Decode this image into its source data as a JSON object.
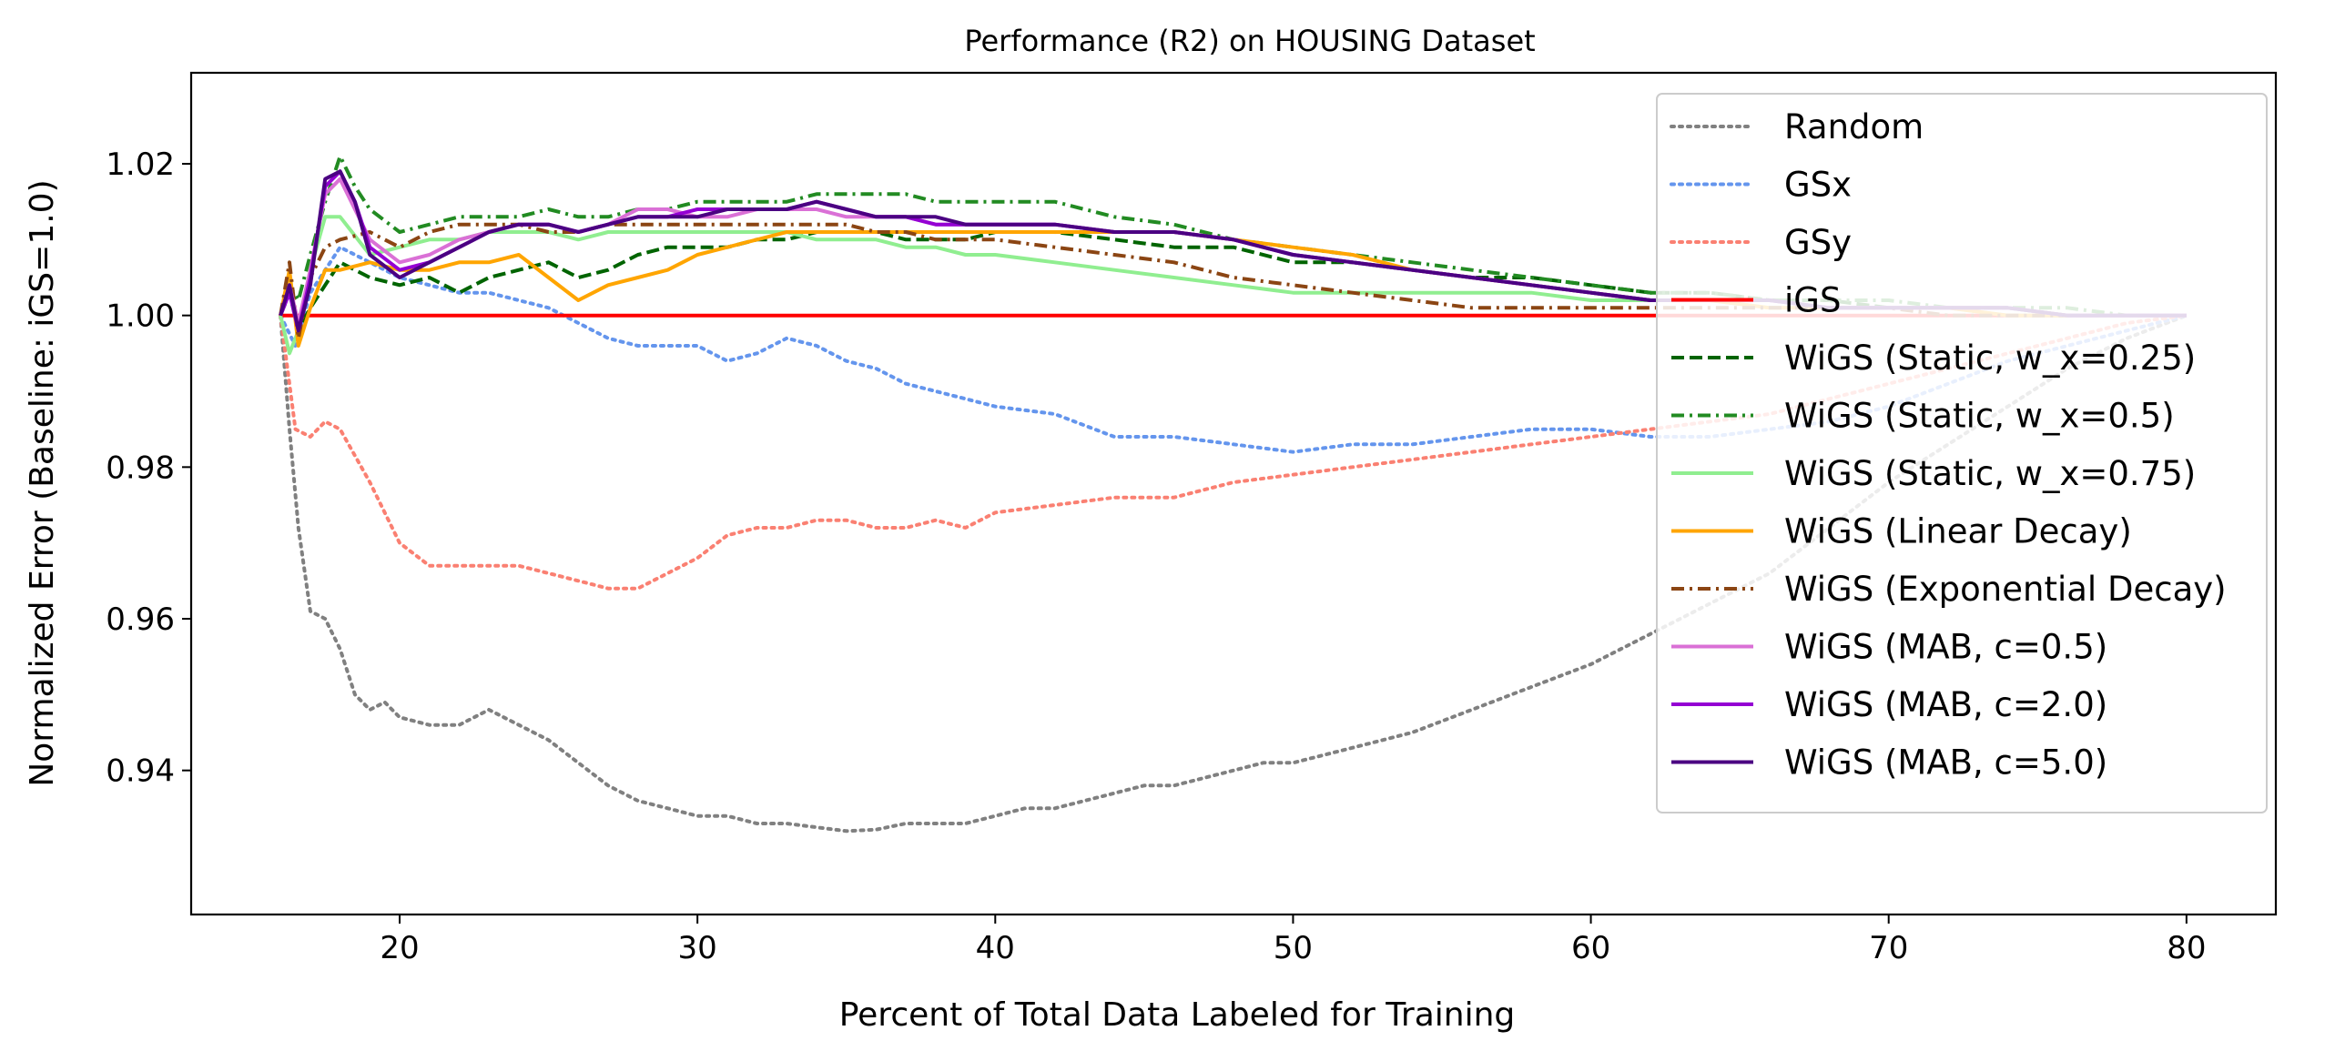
{
  "chart_data": {
    "type": "line",
    "title": "Performance (R2) on HOUSING Dataset",
    "xlabel": "Percent of Total Data Labeled for Training",
    "ylabel": "Normalized Error (Baseline: iGS=1.0)",
    "xlim": [
      13,
      83
    ],
    "ylim": [
      0.921,
      1.032
    ],
    "xticks": [
      20,
      30,
      40,
      50,
      60,
      70,
      80
    ],
    "yticks": [
      0.94,
      0.96,
      0.98,
      1.0,
      1.02
    ],
    "ytick_labels": [
      "0.94",
      "0.96",
      "0.98",
      "1.00",
      "1.02"
    ],
    "grid": false,
    "legend_position": "upper right",
    "series": [
      {
        "name": "Random",
        "color": "#808080",
        "dash": "dotted",
        "x": [
          16,
          16.3,
          16.6,
          17,
          17.5,
          18,
          18.5,
          19,
          19.5,
          20,
          21,
          22,
          23,
          24,
          25,
          26,
          27,
          28,
          29,
          30,
          31,
          32,
          33,
          34,
          35,
          36,
          37,
          38,
          39,
          40,
          41,
          42,
          43,
          44,
          45,
          46,
          47,
          48,
          49,
          50,
          52,
          54,
          56,
          58,
          60,
          62,
          64,
          66,
          68,
          70,
          72,
          74,
          76,
          78,
          80
        ],
        "y": [
          1.0,
          0.985,
          0.972,
          0.961,
          0.96,
          0.956,
          0.95,
          0.948,
          0.949,
          0.947,
          0.946,
          0.946,
          0.948,
          0.946,
          0.944,
          0.941,
          0.938,
          0.936,
          0.935,
          0.934,
          0.934,
          0.933,
          0.933,
          0.9325,
          0.932,
          0.9322,
          0.933,
          0.933,
          0.933,
          0.934,
          0.935,
          0.935,
          0.936,
          0.937,
          0.938,
          0.938,
          0.939,
          0.94,
          0.941,
          0.941,
          0.943,
          0.945,
          0.948,
          0.951,
          0.954,
          0.958,
          0.962,
          0.966,
          0.972,
          0.978,
          0.983,
          0.988,
          0.993,
          0.997,
          1.0
        ]
      },
      {
        "name": "GSx",
        "color": "#6495ED",
        "dash": "dotted",
        "x": [
          16,
          16.5,
          17,
          18,
          19,
          20,
          21,
          22,
          23,
          24,
          25,
          26,
          27,
          28,
          29,
          30,
          31,
          32,
          33,
          34,
          35,
          36,
          37,
          38,
          39,
          40,
          42,
          44,
          46,
          48,
          50,
          52,
          54,
          56,
          58,
          60,
          62,
          64,
          66,
          68,
          70,
          72,
          74,
          76,
          78,
          80
        ],
        "y": [
          1.0,
          0.996,
          1.003,
          1.009,
          1.007,
          1.005,
          1.004,
          1.003,
          1.003,
          1.002,
          1.001,
          0.999,
          0.997,
          0.996,
          0.996,
          0.996,
          0.994,
          0.995,
          0.997,
          0.996,
          0.994,
          0.993,
          0.991,
          0.99,
          0.989,
          0.988,
          0.987,
          0.984,
          0.984,
          0.983,
          0.982,
          0.983,
          0.983,
          0.984,
          0.985,
          0.985,
          0.984,
          0.984,
          0.985,
          0.986,
          0.988,
          0.991,
          0.994,
          0.996,
          0.998,
          1.0
        ]
      },
      {
        "name": "GSy",
        "color": "#FA8072",
        "dash": "dotted",
        "x": [
          16,
          16.5,
          17,
          17.5,
          18,
          19,
          20,
          21,
          22,
          23,
          24,
          25,
          26,
          27,
          28,
          29,
          30,
          31,
          32,
          33,
          34,
          35,
          36,
          37,
          38,
          39,
          40,
          42,
          44,
          46,
          48,
          50,
          52,
          54,
          56,
          58,
          60,
          62,
          64,
          66,
          68,
          70,
          72,
          74,
          76,
          78,
          80
        ],
        "y": [
          1.0,
          0.985,
          0.984,
          0.986,
          0.985,
          0.978,
          0.97,
          0.967,
          0.967,
          0.967,
          0.967,
          0.966,
          0.965,
          0.964,
          0.964,
          0.966,
          0.968,
          0.971,
          0.972,
          0.972,
          0.973,
          0.973,
          0.972,
          0.972,
          0.973,
          0.972,
          0.974,
          0.975,
          0.976,
          0.976,
          0.978,
          0.979,
          0.98,
          0.981,
          0.982,
          0.983,
          0.984,
          0.985,
          0.986,
          0.987,
          0.989,
          0.991,
          0.993,
          0.995,
          0.997,
          0.999,
          1.0
        ]
      },
      {
        "name": "iGS",
        "color": "#FF0000",
        "dash": "solid",
        "x": [
          16,
          80
        ],
        "y": [
          1.0,
          1.0
        ]
      },
      {
        "name": "WiGS (Static, w_x=0.25)",
        "color": "#006400",
        "dash": "dashed",
        "x": [
          16,
          16.3,
          16.6,
          17,
          17.5,
          18,
          19,
          20,
          21,
          22,
          23,
          24,
          25,
          26,
          27,
          28,
          29,
          30,
          31,
          32,
          33,
          34,
          35,
          36,
          37,
          38,
          39,
          40,
          42,
          44,
          46,
          48,
          50,
          52,
          54,
          56,
          58,
          60,
          62,
          64,
          66,
          68,
          70,
          72,
          74,
          76,
          78,
          80
        ],
        "y": [
          1.0,
          1.003,
          0.998,
          1.001,
          1.004,
          1.007,
          1.005,
          1.004,
          1.005,
          1.003,
          1.005,
          1.006,
          1.007,
          1.005,
          1.006,
          1.008,
          1.009,
          1.009,
          1.009,
          1.01,
          1.01,
          1.011,
          1.011,
          1.011,
          1.01,
          1.01,
          1.01,
          1.011,
          1.011,
          1.01,
          1.009,
          1.009,
          1.007,
          1.007,
          1.006,
          1.005,
          1.005,
          1.004,
          1.003,
          1.003,
          1.002,
          1.002,
          1.001,
          1.001,
          1.001,
          1.0,
          1.0,
          1.0
        ]
      },
      {
        "name": "WiGS (Static, w_x=0.5)",
        "color": "#228B22",
        "dash": "dashdot",
        "x": [
          16,
          16.3,
          16.6,
          17,
          17.5,
          18,
          18.5,
          19,
          20,
          21,
          22,
          23,
          24,
          25,
          26,
          27,
          28,
          29,
          30,
          31,
          32,
          33,
          34,
          35,
          36,
          37,
          38,
          39,
          40,
          41,
          42,
          43,
          44,
          46,
          48,
          50,
          52,
          54,
          56,
          58,
          60,
          62,
          64,
          66,
          68,
          70,
          72,
          74,
          76,
          78,
          80
        ],
        "y": [
          1.0,
          1.004,
          1.002,
          1.008,
          1.015,
          1.021,
          1.017,
          1.014,
          1.011,
          1.012,
          1.013,
          1.013,
          1.013,
          1.014,
          1.013,
          1.013,
          1.014,
          1.014,
          1.015,
          1.015,
          1.015,
          1.015,
          1.016,
          1.016,
          1.016,
          1.016,
          1.015,
          1.015,
          1.015,
          1.015,
          1.015,
          1.014,
          1.013,
          1.012,
          1.01,
          1.009,
          1.008,
          1.007,
          1.006,
          1.005,
          1.004,
          1.003,
          1.003,
          1.002,
          1.002,
          1.002,
          1.001,
          1.001,
          1.001,
          1.0,
          1.0
        ]
      },
      {
        "name": "WiGS (Static, w_x=0.75)",
        "color": "#90EE90",
        "dash": "solid",
        "x": [
          16,
          16.3,
          16.6,
          17,
          17.5,
          18,
          19,
          20,
          21,
          22,
          23,
          24,
          25,
          26,
          27,
          28,
          29,
          30,
          31,
          32,
          33,
          34,
          35,
          36,
          37,
          38,
          39,
          40,
          42,
          44,
          46,
          48,
          50,
          52,
          54,
          56,
          58,
          60,
          62,
          64,
          66,
          68,
          70,
          72,
          74,
          76,
          78,
          80
        ],
        "y": [
          1.0,
          0.995,
          0.998,
          1.006,
          1.013,
          1.013,
          1.008,
          1.009,
          1.01,
          1.01,
          1.011,
          1.011,
          1.011,
          1.01,
          1.011,
          1.011,
          1.011,
          1.011,
          1.011,
          1.011,
          1.011,
          1.01,
          1.01,
          1.01,
          1.009,
          1.009,
          1.008,
          1.008,
          1.007,
          1.006,
          1.005,
          1.004,
          1.003,
          1.003,
          1.003,
          1.003,
          1.003,
          1.002,
          1.002,
          1.002,
          1.001,
          1.001,
          1.001,
          1.001,
          1.0,
          1.0,
          1.0,
          1.0
        ]
      },
      {
        "name": "WiGS (Linear Decay)",
        "color": "#FFA500",
        "dash": "solid",
        "x": [
          16,
          16.3,
          16.6,
          17,
          17.5,
          18,
          19,
          20,
          21,
          22,
          23,
          24,
          25,
          26,
          27,
          28,
          29,
          30,
          31,
          32,
          33,
          34,
          35,
          36,
          37,
          38,
          39,
          40,
          42,
          44,
          46,
          48,
          50,
          52,
          54,
          56,
          58,
          60,
          62,
          64,
          66,
          68,
          70,
          72,
          74,
          76,
          78,
          80
        ],
        "y": [
          1.0,
          1.006,
          0.996,
          1.001,
          1.006,
          1.006,
          1.007,
          1.006,
          1.006,
          1.007,
          1.007,
          1.008,
          1.005,
          1.002,
          1.004,
          1.005,
          1.006,
          1.008,
          1.009,
          1.01,
          1.011,
          1.011,
          1.011,
          1.011,
          1.011,
          1.011,
          1.011,
          1.011,
          1.011,
          1.011,
          1.011,
          1.01,
          1.009,
          1.008,
          1.006,
          1.005,
          1.004,
          1.003,
          1.002,
          1.002,
          1.001,
          1.001,
          1.001,
          1.001,
          1.0,
          1.0,
          1.0,
          1.0
        ]
      },
      {
        "name": "WiGS (Exponential Decay)",
        "color": "#8B4513",
        "dash": "dashdot",
        "x": [
          16,
          16.3,
          16.6,
          17,
          17.5,
          18,
          19,
          20,
          21,
          22,
          23,
          24,
          25,
          26,
          27,
          28,
          29,
          30,
          31,
          32,
          33,
          34,
          35,
          36,
          37,
          38,
          39,
          40,
          42,
          44,
          46,
          48,
          50,
          52,
          54,
          56,
          58,
          60,
          62,
          64,
          66,
          68,
          70,
          72,
          74,
          76,
          78,
          80
        ],
        "y": [
          1.0,
          1.007,
          0.997,
          1.005,
          1.009,
          1.01,
          1.011,
          1.009,
          1.011,
          1.012,
          1.012,
          1.012,
          1.011,
          1.011,
          1.012,
          1.012,
          1.012,
          1.012,
          1.012,
          1.012,
          1.012,
          1.012,
          1.012,
          1.011,
          1.011,
          1.01,
          1.01,
          1.01,
          1.009,
          1.008,
          1.007,
          1.005,
          1.004,
          1.003,
          1.002,
          1.001,
          1.001,
          1.001,
          1.001,
          1.001,
          1.001,
          1.001,
          1.001,
          1.0,
          1.0,
          1.0,
          1.0,
          1.0
        ]
      },
      {
        "name": "WiGS (MAB, c=0.5)",
        "color": "#DA70D6",
        "dash": "solid",
        "x": [
          16,
          16.3,
          16.6,
          17,
          17.5,
          18,
          18.5,
          19,
          20,
          21,
          22,
          23,
          24,
          25,
          26,
          27,
          28,
          29,
          30,
          31,
          32,
          33,
          34,
          35,
          36,
          37,
          38,
          39,
          40,
          42,
          44,
          46,
          48,
          50,
          52,
          54,
          56,
          58,
          60,
          62,
          64,
          66,
          68,
          70,
          72,
          74,
          76,
          78,
          80
        ],
        "y": [
          1.0,
          1.004,
          0.999,
          1.006,
          1.016,
          1.018,
          1.014,
          1.01,
          1.007,
          1.008,
          1.01,
          1.011,
          1.012,
          1.012,
          1.011,
          1.012,
          1.014,
          1.014,
          1.013,
          1.013,
          1.014,
          1.014,
          1.014,
          1.013,
          1.013,
          1.013,
          1.012,
          1.012,
          1.012,
          1.012,
          1.011,
          1.011,
          1.01,
          1.008,
          1.007,
          1.006,
          1.005,
          1.004,
          1.003,
          1.002,
          1.002,
          1.002,
          1.001,
          1.001,
          1.001,
          1.001,
          1.0,
          1.0,
          1.0
        ]
      },
      {
        "name": "WiGS (MAB, c=2.0)",
        "color": "#9400D3",
        "dash": "solid",
        "x": [
          16,
          16.3,
          16.6,
          17,
          17.5,
          18,
          18.5,
          19,
          20,
          21,
          22,
          23,
          24,
          25,
          26,
          27,
          28,
          29,
          30,
          31,
          32,
          33,
          34,
          35,
          36,
          37,
          38,
          39,
          40,
          42,
          44,
          46,
          48,
          50,
          52,
          54,
          56,
          58,
          60,
          62,
          64,
          66,
          68,
          70,
          72,
          74,
          76,
          78,
          80
        ],
        "y": [
          1.0,
          1.003,
          0.998,
          1.005,
          1.017,
          1.019,
          1.015,
          1.009,
          1.006,
          1.007,
          1.009,
          1.011,
          1.012,
          1.012,
          1.011,
          1.012,
          1.013,
          1.013,
          1.014,
          1.014,
          1.014,
          1.014,
          1.015,
          1.014,
          1.013,
          1.013,
          1.012,
          1.012,
          1.012,
          1.012,
          1.011,
          1.011,
          1.01,
          1.008,
          1.007,
          1.006,
          1.005,
          1.004,
          1.003,
          1.002,
          1.002,
          1.002,
          1.001,
          1.001,
          1.001,
          1.001,
          1.0,
          1.0,
          1.0
        ]
      },
      {
        "name": "WiGS (MAB, c=5.0)",
        "color": "#4B0082",
        "dash": "solid",
        "x": [
          16,
          16.3,
          16.6,
          17,
          17.5,
          18,
          18.5,
          19,
          20,
          21,
          22,
          23,
          24,
          25,
          26,
          27,
          28,
          29,
          30,
          31,
          32,
          33,
          34,
          35,
          36,
          37,
          38,
          39,
          40,
          42,
          44,
          46,
          48,
          50,
          52,
          54,
          56,
          58,
          60,
          62,
          64,
          66,
          68,
          70,
          72,
          74,
          76,
          78,
          80
        ],
        "y": [
          1.0,
          1.004,
          0.998,
          1.004,
          1.018,
          1.019,
          1.015,
          1.008,
          1.005,
          1.007,
          1.009,
          1.011,
          1.012,
          1.012,
          1.011,
          1.012,
          1.013,
          1.013,
          1.013,
          1.014,
          1.014,
          1.014,
          1.015,
          1.014,
          1.013,
          1.013,
          1.013,
          1.012,
          1.012,
          1.012,
          1.011,
          1.011,
          1.01,
          1.008,
          1.007,
          1.006,
          1.005,
          1.004,
          1.003,
          1.002,
          1.002,
          1.002,
          1.001,
          1.001,
          1.001,
          1.001,
          1.0,
          1.0,
          1.0
        ]
      }
    ]
  }
}
